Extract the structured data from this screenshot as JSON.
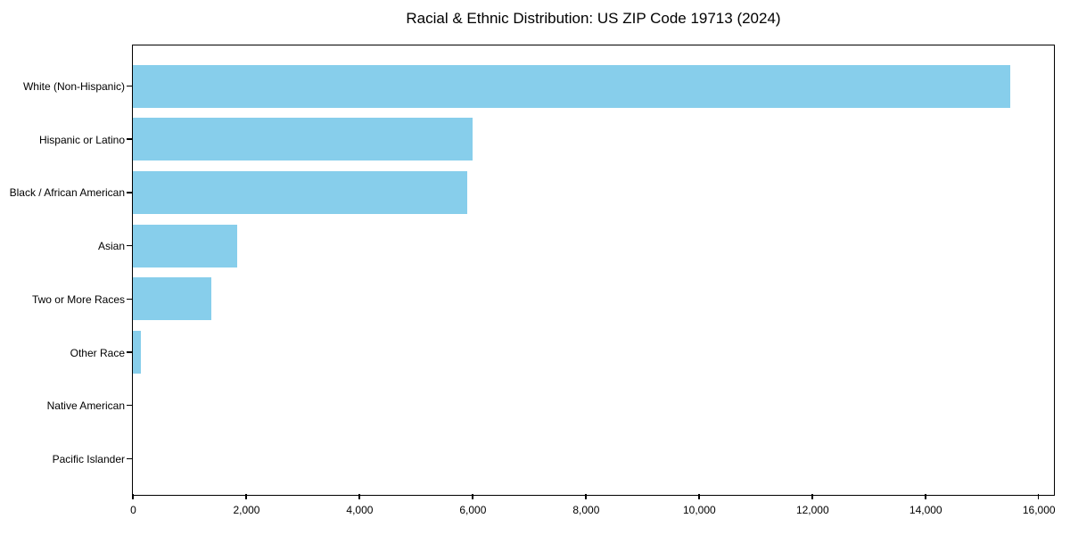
{
  "chart_data": {
    "type": "bar",
    "orientation": "horizontal",
    "title": "Racial & Ethnic Distribution: US ZIP Code 19713 (2024)",
    "categories": [
      "White (Non-Hispanic)",
      "Hispanic or Latino",
      "Black / African American",
      "Asian",
      "Two or More Races",
      "Other Race",
      "Native American",
      "Pacific Islander"
    ],
    "values": [
      15500,
      6000,
      5900,
      1840,
      1380,
      140,
      0,
      0
    ],
    "xlabel": "",
    "ylabel": "",
    "xlim": [
      0,
      16256
    ],
    "x_ticks": [
      0,
      2000,
      4000,
      6000,
      8000,
      10000,
      12000,
      14000,
      16000
    ],
    "x_tick_labels": [
      "0",
      "2,000",
      "4,000",
      "6,000",
      "8,000",
      "10,000",
      "12,000",
      "14,000",
      "16,000"
    ],
    "bar_color": "#87CEEB",
    "background_color": "#ffffff",
    "spine_color": "#000000",
    "text_color": "#000000",
    "grid": false,
    "legend": "none"
  }
}
